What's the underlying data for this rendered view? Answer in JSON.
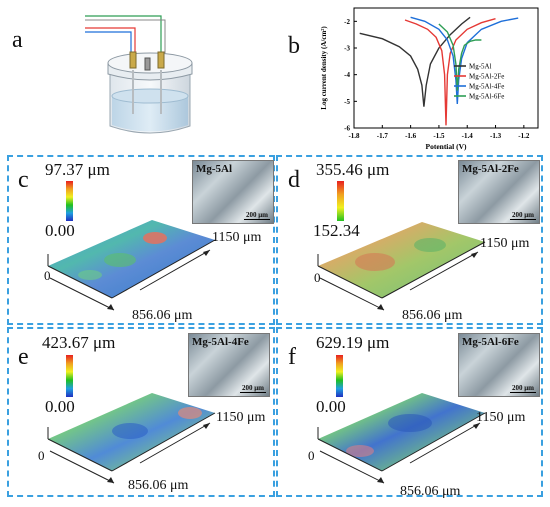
{
  "panels": {
    "a": {
      "letter": "a"
    },
    "b": {
      "letter": "b"
    },
    "c": {
      "letter": "c",
      "max": "97.37 μm",
      "min": "0.00",
      "inset": "Mg-5Al",
      "scale": "200 μm",
      "width": "1150 μm",
      "length": "856.06 μm",
      "origin": "0"
    },
    "d": {
      "letter": "d",
      "max": "355.46 μm",
      "min": "152.34",
      "inset": "Mg-5Al-2Fe",
      "scale": "200 μm",
      "width": "1150 μm",
      "length": "856.06 μm",
      "origin": "0"
    },
    "e": {
      "letter": "e",
      "max": "423.67 μm",
      "min": "0.00",
      "inset": "Mg-5Al-4Fe",
      "scale": "200 μm",
      "width": "1150 μm",
      "length": "856.06 μm",
      "origin": "0"
    },
    "f": {
      "letter": "f",
      "max": "629.19 μm",
      "min": "0.00",
      "inset": "Mg-5Al-6Fe",
      "scale": "200 μm",
      "width": "1150 μm",
      "length": "856.06 μm",
      "origin": "0"
    }
  },
  "chart_data": {
    "type": "line",
    "xlabel": "Potential (V)",
    "ylabel": "Log current density (A/cm²)",
    "xlim": [
      -1.8,
      -1.15
    ],
    "ylim": [
      -6,
      -1.5
    ],
    "xticks": [
      -1.8,
      -1.7,
      -1.6,
      -1.5,
      -1.4,
      -1.3,
      -1.2
    ],
    "yticks": [
      -6,
      -5,
      -4,
      -3,
      -2
    ],
    "legend": "right",
    "series": [
      {
        "name": "Mg-5Al",
        "color": "#333333",
        "x": [
          -1.78,
          -1.7,
          -1.64,
          -1.6,
          -1.575,
          -1.56,
          -1.553,
          -1.545,
          -1.53,
          -1.5,
          -1.46,
          -1.42,
          -1.39
        ],
        "y": [
          -2.45,
          -2.65,
          -2.95,
          -3.3,
          -3.8,
          -4.4,
          -5.2,
          -4.4,
          -3.6,
          -3.0,
          -2.5,
          -2.1,
          -1.85
        ]
      },
      {
        "name": "Mg-5Al-2Fe",
        "color": "#e53935",
        "x": [
          -1.62,
          -1.58,
          -1.54,
          -1.51,
          -1.49,
          -1.48,
          -1.475,
          -1.47,
          -1.46,
          -1.44,
          -1.4,
          -1.35,
          -1.3
        ],
        "y": [
          -1.95,
          -2.1,
          -2.3,
          -2.6,
          -3.1,
          -4.0,
          -5.9,
          -4.0,
          -3.2,
          -2.7,
          -2.3,
          -2.05,
          -1.9
        ]
      },
      {
        "name": "Mg-5Al-4Fe",
        "color": "#1e6fd9",
        "x": [
          -1.6,
          -1.55,
          -1.5,
          -1.47,
          -1.45,
          -1.44,
          -1.435,
          -1.43,
          -1.42,
          -1.4,
          -1.35,
          -1.28,
          -1.22
        ],
        "y": [
          -1.85,
          -2.0,
          -2.3,
          -2.7,
          -3.3,
          -4.2,
          -5.1,
          -4.2,
          -3.4,
          -2.8,
          -2.3,
          -2.0,
          -1.88
        ]
      },
      {
        "name": "Mg-5Al-6Fe",
        "color": "#2e9e55",
        "x": [
          -1.5,
          -1.47,
          -1.45,
          -1.44,
          -1.435,
          -1.43,
          -1.42,
          -1.41,
          -1.39,
          -1.37,
          -1.35
        ],
        "y": [
          -2.1,
          -2.4,
          -2.9,
          -3.6,
          -4.6,
          -3.8,
          -3.2,
          -2.9,
          -2.75,
          -2.7,
          -2.7
        ]
      }
    ]
  }
}
